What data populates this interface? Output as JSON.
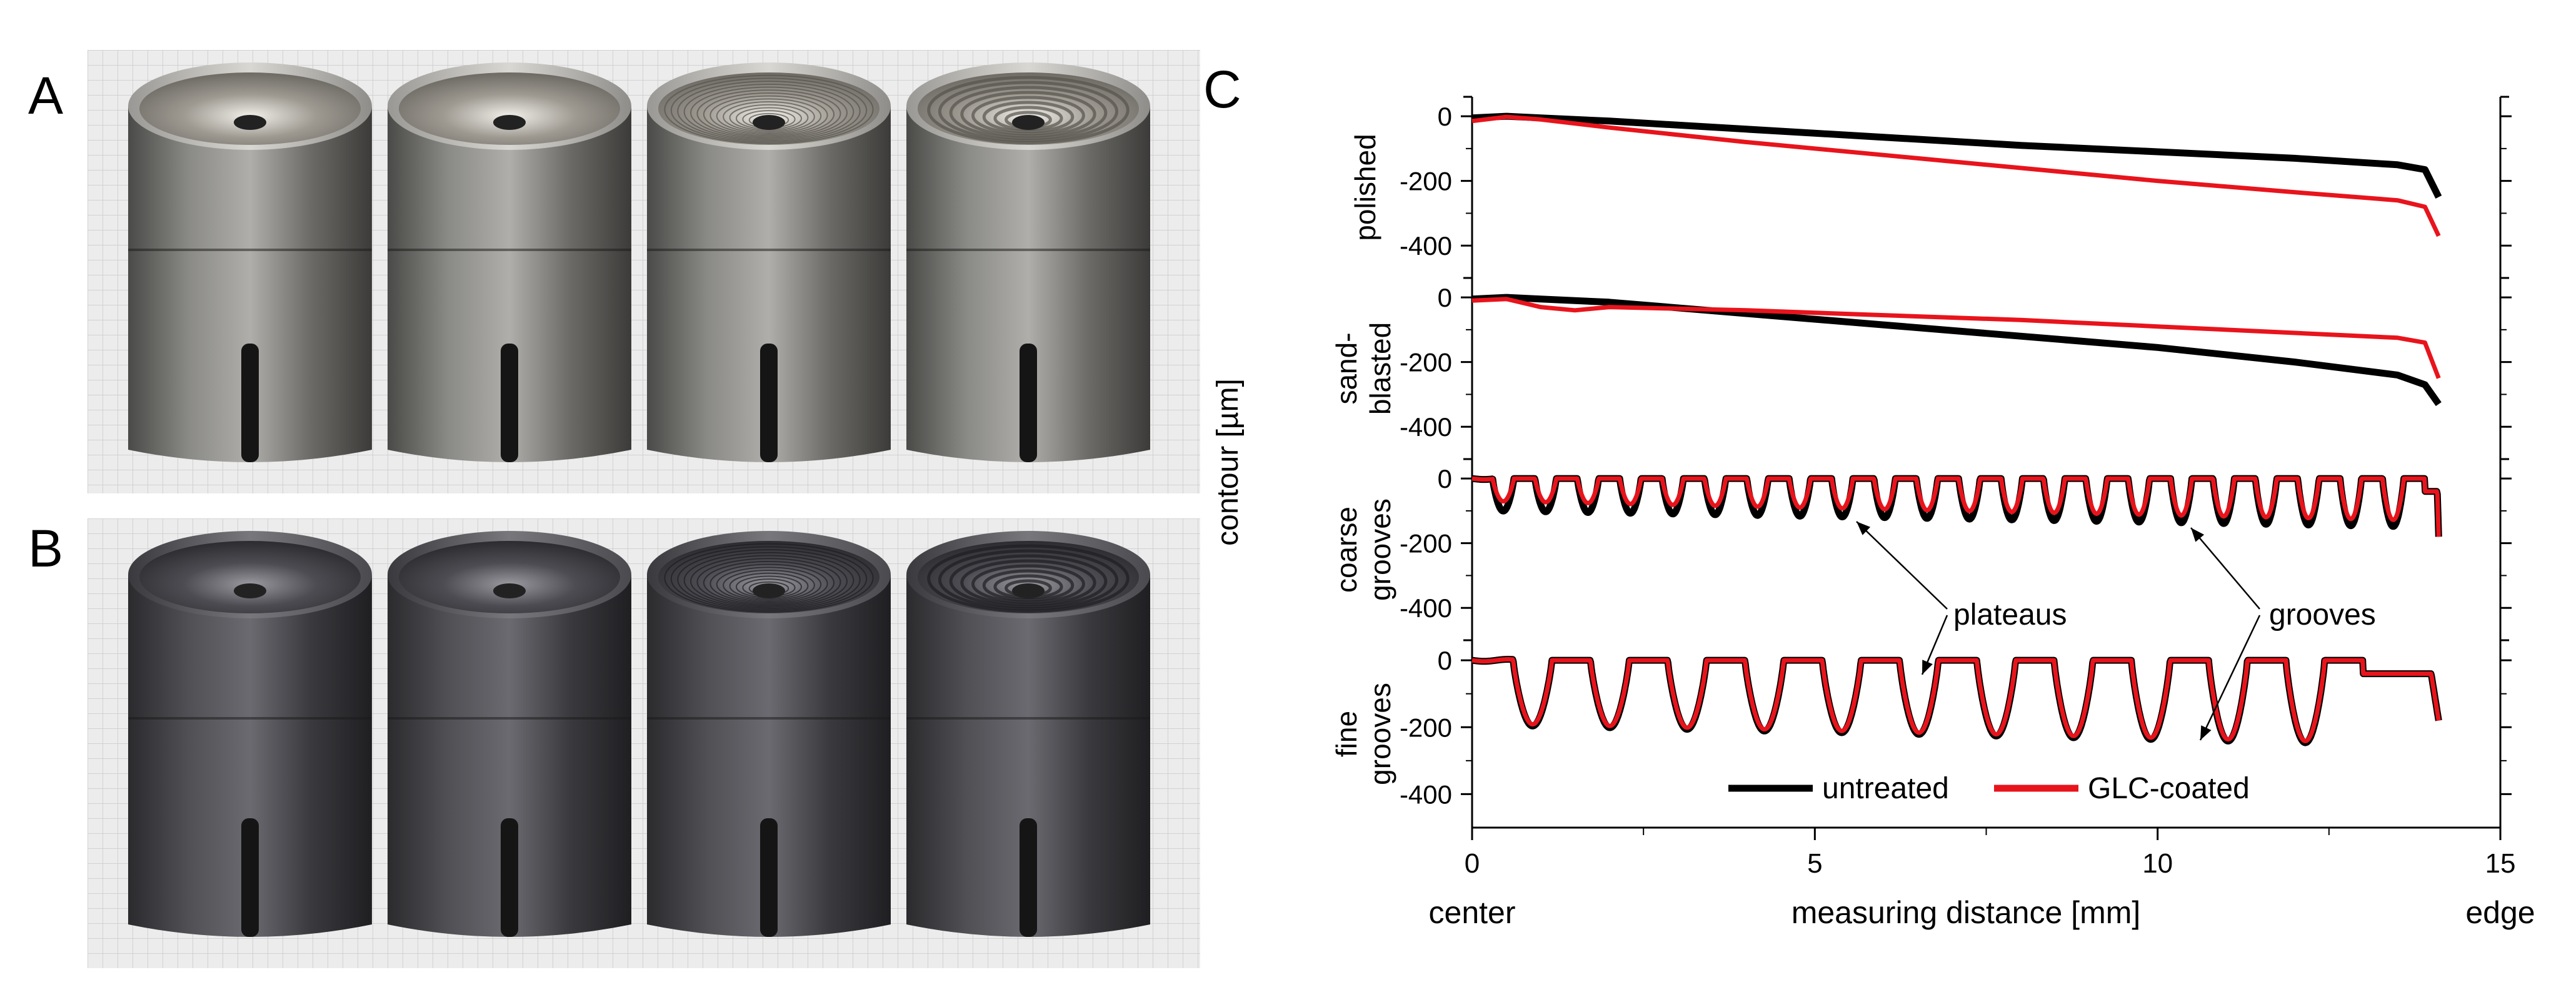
{
  "figure": {
    "panel_labels": {
      "a": "A",
      "b": "B",
      "c": "C"
    }
  },
  "photo_a": {
    "label": "A",
    "surfaces": [
      "polished",
      "sand-blasted",
      "coarse grooves",
      "fine grooves"
    ],
    "state": "untreated"
  },
  "photo_b": {
    "label": "B",
    "surfaces": [
      "polished",
      "sand-blasted",
      "coarse grooves",
      "fine grooves"
    ],
    "state": "GLC-coated"
  },
  "colors": {
    "untreated": "#000000",
    "coated": "#e8141c"
  },
  "chart_data": {
    "type": "line",
    "title": "",
    "xlabel": "measuring distance [mm]",
    "ylabel": "contour [µm]",
    "xlim": [
      0,
      15
    ],
    "x_ticks": [
      0,
      5,
      10,
      15
    ],
    "x_tick_labels": [
      "0",
      "5",
      "10",
      "15"
    ],
    "ylim": [
      -500,
      60
    ],
    "y_ticks": [
      0,
      -200,
      -400
    ],
    "y_tick_labels": [
      "0",
      "-200",
      "-400"
    ],
    "x_end_labels": {
      "left": "center",
      "right": "edge"
    },
    "legend": {
      "placement": "bottom-center",
      "entries": [
        "untreated",
        "GLC-coated"
      ]
    },
    "annotations": [
      {
        "text": "plateaus",
        "panel": "fine grooves"
      },
      {
        "text": "grooves",
        "panel": "fine grooves"
      }
    ],
    "panels": [
      {
        "name": "polished",
        "row_label": [
          "",
          "polished"
        ],
        "series": [
          {
            "name": "untreated",
            "x": [
              0,
              0.5,
              1,
              2,
              4,
              6,
              8,
              10,
              12,
              13.5,
              13.9,
              14.1
            ],
            "y": [
              -5,
              0,
              -5,
              -15,
              -40,
              -65,
              -90,
              -110,
              -130,
              -150,
              -165,
              -250
            ]
          },
          {
            "name": "GLC-coated",
            "x": [
              0,
              0.5,
              1,
              2,
              4,
              6,
              8,
              10,
              12,
              13.5,
              13.9,
              14.1
            ],
            "y": [
              -15,
              -2,
              -10,
              -35,
              -80,
              -120,
              -160,
              -200,
              -235,
              -260,
              -280,
              -370
            ]
          }
        ]
      },
      {
        "name": "sand-blasted",
        "row_label": [
          "sand-",
          "blasted"
        ],
        "series": [
          {
            "name": "untreated",
            "x": [
              0,
              0.5,
              1,
              2,
              4,
              6,
              8,
              10,
              12,
              13.5,
              13.9,
              14.1
            ],
            "y": [
              -5,
              0,
              -5,
              -15,
              -50,
              -85,
              -120,
              -155,
              -200,
              -240,
              -270,
              -330
            ]
          },
          {
            "name": "GLC-coated",
            "x": [
              0,
              0.5,
              1,
              1.5,
              2,
              4,
              6,
              8,
              10,
              12,
              13.5,
              13.9,
              14.1
            ],
            "y": [
              -10,
              -5,
              -30,
              -40,
              -30,
              -40,
              -55,
              -70,
              -90,
              -110,
              -125,
              -140,
              -250
            ]
          }
        ]
      },
      {
        "name": "coarse grooves",
        "row_label": [
          "coarse",
          "grooves"
        ],
        "series": [
          {
            "name": "untreated",
            "kind": "grooves",
            "plateau": 0,
            "depth_start": 100,
            "depth_end": 150,
            "start": 0.3,
            "end": 13.9,
            "count": 22,
            "end_drop": -180
          },
          {
            "name": "GLC-coated",
            "kind": "grooves",
            "plateau": 0,
            "depth_start": 70,
            "depth_end": 130,
            "start": 0.3,
            "end": 13.9,
            "count": 22,
            "end_drop": -180
          }
        ]
      },
      {
        "name": "fine grooves",
        "row_label": [
          "fine",
          "grooves"
        ],
        "series": [
          {
            "name": "untreated",
            "kind": "grooves",
            "plateau": 0,
            "depth_start": 195,
            "depth_end": 250,
            "start": 0.6,
            "end": 13.0,
            "count": 11,
            "end_drop": -180
          },
          {
            "name": "GLC-coated",
            "kind": "grooves",
            "plateau": 0,
            "depth_start": 190,
            "depth_end": 245,
            "start": 0.6,
            "end": 13.0,
            "count": 11,
            "end_drop": -180
          }
        ]
      }
    ]
  }
}
